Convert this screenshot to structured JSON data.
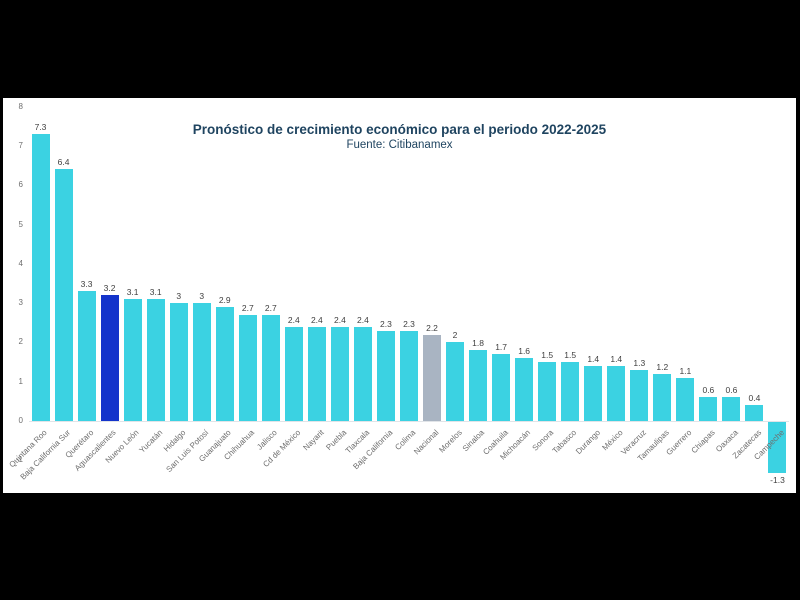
{
  "frame": {
    "letterbox_color": "#000000",
    "canvas_color": "#ffffff"
  },
  "chart_data": {
    "type": "bar",
    "title": "Pronóstico de crecimiento económico para el periodo 2022-2025",
    "subtitle": "Fuente: Citibanamex",
    "xlabel": "",
    "ylabel": "",
    "grid": false,
    "legend": false,
    "value_labels": true,
    "ylim": [
      -1.5,
      8
    ],
    "y_ticks": [
      8,
      7,
      6,
      5,
      4,
      3,
      2,
      1,
      0,
      -1
    ],
    "categories": [
      "Quintana Roo",
      "Baja California Sur",
      "Querétaro",
      "Aguascalientes",
      "Nuevo León",
      "Yucatán",
      "Hidalgo",
      "San Luis Potosí",
      "Guanajuato",
      "Chihuahua",
      "Jalisco",
      "Cd de México",
      "Nayarit",
      "Puebla",
      "Tlaxcala",
      "Baja California",
      "Colima",
      "Nacional",
      "Morelos",
      "Sinaloa",
      "Coahuila",
      "Michoacán",
      "Sonora",
      "Tabasco",
      "Durango",
      "México",
      "Veracruz",
      "Tamaulipas",
      "Guerrero",
      "Chiapas",
      "Oaxaca",
      "Zacatecas",
      "Campeche"
    ],
    "values": [
      7.3,
      6.4,
      3.3,
      3.2,
      3.1,
      3.1,
      3,
      3,
      2.9,
      2.7,
      2.7,
      2.4,
      2.4,
      2.4,
      2.4,
      2.3,
      2.3,
      2.2,
      2,
      1.8,
      1.7,
      1.6,
      1.5,
      1.5,
      1.4,
      1.4,
      1.3,
      1.2,
      1.1,
      0.6,
      0.6,
      0.4,
      -1.3
    ],
    "highlighted_category": "Aguascalientes",
    "national_category": "Nacional",
    "colors": {
      "default_bar": "#3BD2E2",
      "highlight_bar": "#1434CB",
      "national_bar": "#A9B4C2",
      "title_text": "#1F4460",
      "value_label_text": "#404040",
      "axis_text": "#6E6E6E"
    }
  }
}
